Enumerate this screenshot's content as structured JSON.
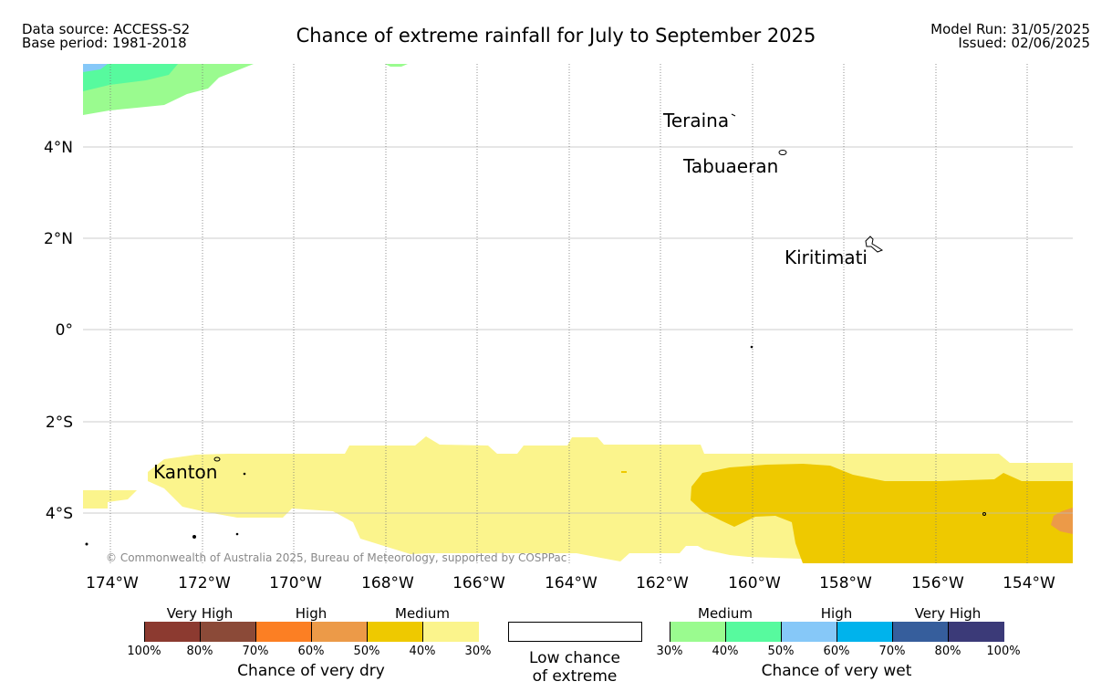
{
  "header": {
    "data_source": "Data source: ACCESS-S2",
    "base_period": "Base period: 1981-2018",
    "title": "Chance of extreme rainfall for July to September 2025",
    "model_run": "Model Run: 31/05/2025",
    "issued": "Issued: 02/06/2025"
  },
  "map": {
    "lon_range": [
      -174.6,
      -152.9
    ],
    "lat_range": [
      -5.1,
      5.8
    ],
    "lat_ticks": [
      "4°N",
      "2°N",
      "0°",
      "2°S",
      "4°S"
    ],
    "lon_ticks": [
      "174°W",
      "172°W",
      "170°W",
      "168°W",
      "166°W",
      "164°W",
      "162°W",
      "160°W",
      "158°W",
      "156°W",
      "154°W"
    ],
    "places": [
      "Teraina",
      "Tabuaeran",
      "Kiritimati",
      "Kanton"
    ],
    "copyright": "© Commonwealth of Australia 2025, Bureau of Meteorology, supported by COSPPac"
  },
  "legend": {
    "dry": {
      "title": "Chance of very dry",
      "categories": [
        "Very High",
        "High",
        "Medium"
      ],
      "ticks": [
        "100%",
        "80%",
        "70%",
        "60%",
        "50%",
        "40%",
        "30%"
      ],
      "colors": [
        "#8c3a30",
        "#8b4a38",
        "#fc7f23",
        "#ec9a48",
        "#eec900",
        "#fbf48c"
      ]
    },
    "neutral": {
      "label_line1": "Low chance",
      "label_line2": "of extreme",
      "color": "#ffffff"
    },
    "wet": {
      "title": "Chance of very wet",
      "categories": [
        "Medium",
        "High",
        "Very High"
      ],
      "ticks": [
        "30%",
        "40%",
        "50%",
        "60%",
        "70%",
        "80%",
        "100%"
      ],
      "colors": [
        "#9afb8f",
        "#57fa9e",
        "#86c8f8",
        "#00b3ec",
        "#365e9c",
        "#3b3a78"
      ]
    }
  }
}
